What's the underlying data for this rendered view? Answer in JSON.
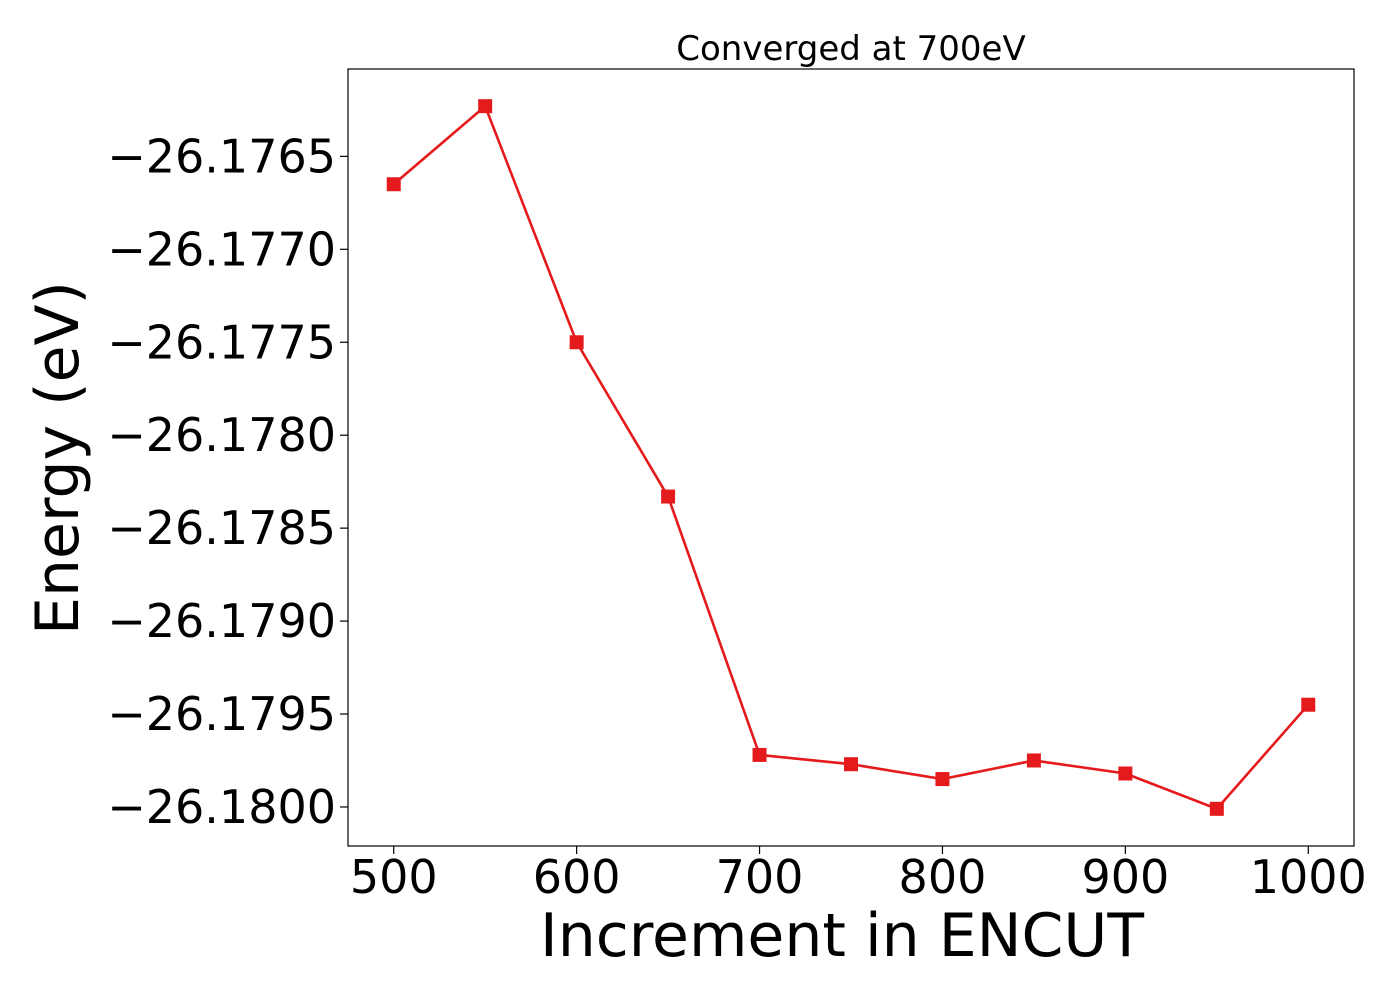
{
  "chart_data": {
    "type": "line",
    "title": "Converged at 700eV",
    "xlabel": "Increment in ENCUT",
    "ylabel": "Energy (eV)",
    "xlim": [
      475,
      1025
    ],
    "ylim": [
      -26.18021,
      -26.17603
    ],
    "xticks": [
      500,
      600,
      700,
      800,
      900,
      1000
    ],
    "yticks": [
      -26.1765,
      -26.177,
      -26.1775,
      -26.178,
      -26.1785,
      -26.179,
      -26.1795,
      -26.18
    ],
    "ytick_labels": [
      "−26.1765",
      "−26.1770",
      "−26.1775",
      "−26.1780",
      "−26.1785",
      "−26.1790",
      "−26.1795",
      "−26.1800"
    ],
    "grid": false,
    "series": [
      {
        "color": "#e41a1c",
        "marker": "square",
        "x": [
          500,
          550,
          600,
          650,
          700,
          750,
          800,
          850,
          900,
          950,
          1000
        ],
        "y": [
          -26.17665,
          -26.17623,
          -26.1775,
          -26.17833,
          -26.17972,
          -26.17977,
          -26.17985,
          -26.17975,
          -26.17982,
          -26.18001,
          -26.17945
        ]
      }
    ]
  }
}
